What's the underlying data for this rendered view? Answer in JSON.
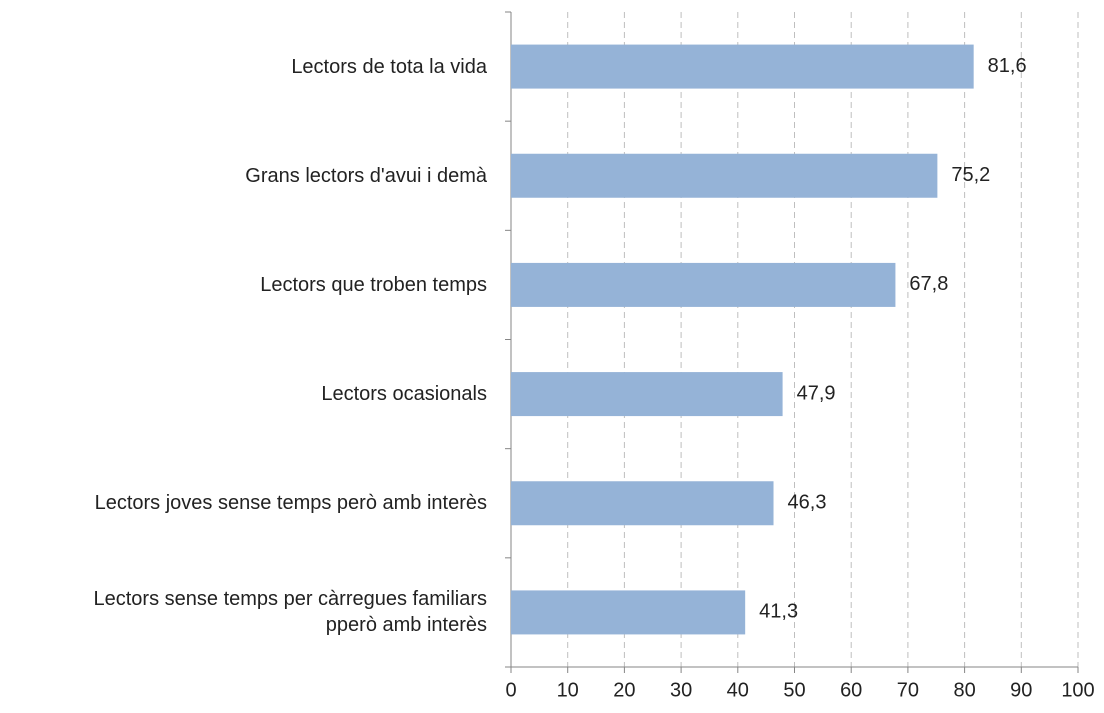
{
  "chart_data": {
    "type": "bar",
    "orientation": "horizontal",
    "categories": [
      "Lectors de tota la vida",
      "Grans lectors d'avui i demà",
      "Lectors que troben temps",
      "Lectors ocasionals",
      "Lectors joves sense temps però amb interès",
      "Lectors sense temps per càrregues familiars\npperò amb interès"
    ],
    "values": [
      81.6,
      75.2,
      67.8,
      47.9,
      46.3,
      41.3
    ],
    "value_labels": [
      "81,6",
      "75,2",
      "67,8",
      "47,9",
      "46,3",
      "41,3"
    ],
    "color": "#95b3d7",
    "xlim": [
      0,
      100
    ],
    "xticks": [
      0,
      10,
      20,
      30,
      40,
      50,
      60,
      70,
      80,
      90,
      100
    ],
    "grid": true
  }
}
